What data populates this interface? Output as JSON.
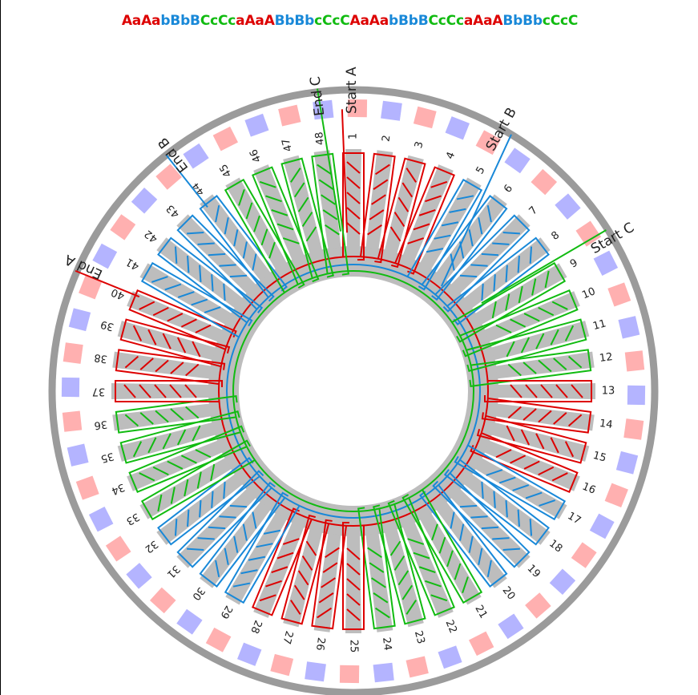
{
  "title": "AaAabBbBCcCcaAaABbBbcCcCAaAabBbBCcCcaAaABbBbcCcC",
  "phase_colors": {
    "A": "#dd0000",
    "B": "#1888d8",
    "C": "#11bb11"
  },
  "magnet_colors": [
    "#ffb0b0",
    "#b4b4ff"
  ],
  "magnet_poles": 52,
  "slot_labels": [
    "1",
    "2",
    "3",
    "4",
    "5",
    "6",
    "7",
    "8",
    "9",
    "10",
    "11",
    "12",
    "13",
    "14",
    "15",
    "16",
    "17",
    "18",
    "19",
    "20",
    "21",
    "22",
    "23",
    "24",
    "25",
    "26",
    "27",
    "28",
    "29",
    "30",
    "31",
    "32",
    "33",
    "34",
    "35",
    "36",
    "37",
    "38",
    "39",
    "40",
    "41",
    "42",
    "43",
    "44",
    "45",
    "46",
    "47",
    "48"
  ],
  "leads": [
    {
      "label": "Start A",
      "phase": "A"
    },
    {
      "label": "End C",
      "phase": "C"
    },
    {
      "label": "Start B",
      "phase": "B"
    },
    {
      "label": "Start C",
      "phase": "C"
    },
    {
      "label": "End B",
      "phase": "B"
    },
    {
      "label": "End A",
      "phase": "A"
    }
  ]
}
